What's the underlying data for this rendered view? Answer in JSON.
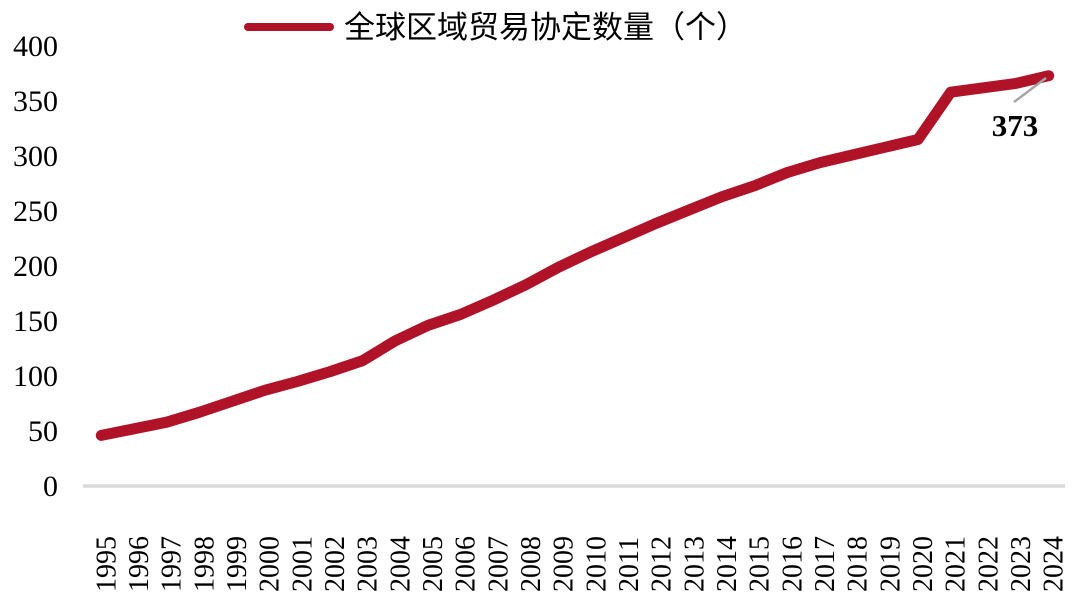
{
  "chart_data": {
    "type": "line",
    "title": "全球区域贸易协定数量（个）",
    "legend_position": "top",
    "grid": false,
    "categories": [
      "1995",
      "1996",
      "1997",
      "1998",
      "1999",
      "2000",
      "2001",
      "2002",
      "2003",
      "2004",
      "2005",
      "2006",
      "2007",
      "2008",
      "2009",
      "2010",
      "2011",
      "2012",
      "2013",
      "2014",
      "2015",
      "2016",
      "2017",
      "2018",
      "2019",
      "2020",
      "2021",
      "2022",
      "2023",
      "2024"
    ],
    "series": [
      {
        "name": "全球区域贸易协定数量（个）",
        "values": [
          46,
          52,
          58,
          67,
          77,
          87,
          95,
          104,
          114,
          132,
          146,
          156,
          169,
          183,
          199,
          213,
          226,
          239,
          251,
          263,
          273,
          285,
          294,
          301,
          308,
          315,
          358,
          362,
          366,
          373
        ]
      }
    ],
    "annotation": {
      "text": "373",
      "x_category": "2024",
      "value": 373
    },
    "ylim": [
      0,
      400
    ],
    "yticks": [
      0,
      50,
      100,
      150,
      200,
      250,
      300,
      350,
      400
    ],
    "xlabel": "",
    "ylabel": "",
    "colors": {
      "line": "#B01228",
      "annotation": "#B01228",
      "axis": "#D9D9D9",
      "leader": "#A6A6A6",
      "text": "#000000"
    }
  }
}
